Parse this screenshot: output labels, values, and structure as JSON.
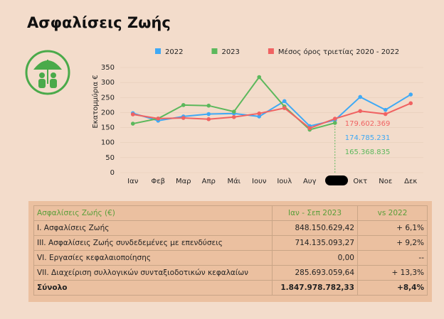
{
  "title": "Ασφαλίσεις Ζωής",
  "chart_data": {
    "type": "line",
    "y_label": "Εκατομμύρια €",
    "categories": [
      "Ιαν",
      "Φεβ",
      "Μαρ",
      "Απρ",
      "Μάι",
      "Ιουν",
      "Ιουλ",
      "Αυγ",
      null,
      "Οκτ",
      "Νοε",
      "Δεκ"
    ],
    "series": [
      {
        "name": "2022",
        "color": "#3fa9f5",
        "values": [
          198,
          173,
          187,
          195,
          197,
          187,
          238,
          155,
          174.785231,
          252,
          209,
          260
        ],
        "value_labels": [
          null,
          null,
          null,
          null,
          null,
          null,
          null,
          null,
          "174.785.231",
          null,
          null,
          null
        ]
      },
      {
        "name": "2023",
        "color": "#5cb85c",
        "values": [
          163,
          180,
          225,
          223,
          203,
          318,
          220,
          143,
          165.368835,
          null,
          null,
          null
        ],
        "value_labels": [
          null,
          null,
          null,
          null,
          null,
          null,
          null,
          null,
          "165.368.835",
          null,
          null,
          null
        ]
      },
      {
        "name": "Μέσος όρος τριετίας 2020 - 2022",
        "color": "#f06262",
        "values": [
          194,
          180,
          182,
          178,
          185,
          197,
          215,
          148,
          179.602369,
          205,
          195,
          231
        ],
        "value_labels": [
          null,
          null,
          null,
          null,
          null,
          null,
          null,
          null,
          "179.602.369",
          null,
          null,
          null
        ]
      }
    ],
    "ylim": [
      0,
      350
    ],
    "yticks": [
      0,
      50,
      100,
      150,
      200,
      250,
      300,
      350
    ],
    "legend": "top"
  },
  "table": {
    "header": [
      "Ασφαλίσεις Ζωής (€)",
      "Ιαν - Σεπ 2023",
      "vs 2022"
    ],
    "rows": [
      [
        "I. Ασφαλίσεις  Ζωής",
        "848.150.629,42",
        "+ 6,1%"
      ],
      [
        "III. Ασφαλίσεις  Ζωής  συνδεδεμένες με επενδύσεις",
        "714.135.093,27",
        "+ 9,2%"
      ],
      [
        "VI. Εργασίες κεφαλαιοποίησης",
        "0,00",
        "--"
      ],
      [
        "VII. Διαχείριση συλλογικών συνταξιοδοτικών κεφαλαίων",
        "285.693.059,64",
        "+ 13,3%"
      ],
      [
        "Σύνολο",
        "1.847.978.782,33",
        "+8,4%"
      ]
    ]
  }
}
